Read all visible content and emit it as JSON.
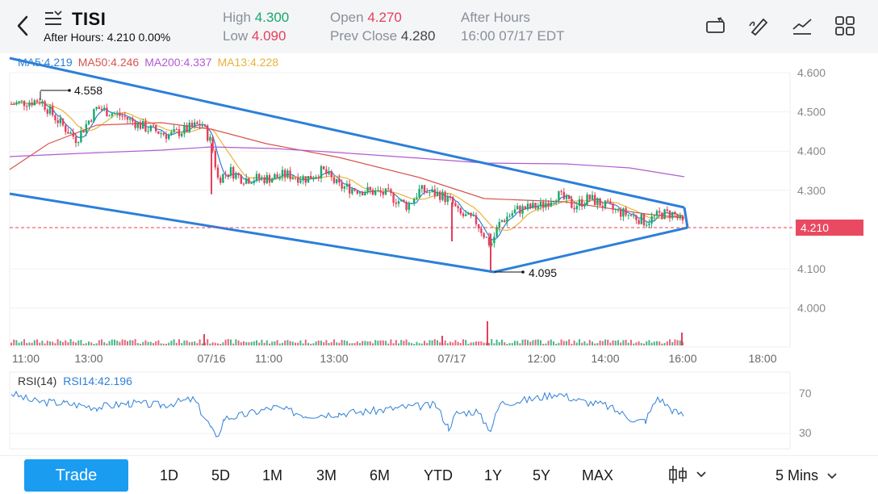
{
  "header": {
    "ticker": "TISI",
    "after_hours_line": "After Hours: 4.210 0.00%",
    "high_label": "High",
    "high_value": "4.300",
    "low_label": "Low",
    "low_value": "4.090",
    "open_label": "Open",
    "open_value": "4.270",
    "prev_close_label": "Prev Close",
    "prev_close_value": "4.280",
    "session_label": "After Hours",
    "session_time": "16:00 07/17 EDT"
  },
  "toolbar_icons": [
    "rotate-screen-icon",
    "drawing-tool-icon",
    "indicator-icon",
    "layout-grid-icon"
  ],
  "legend": {
    "ma5": "MA5:4.219",
    "ma50": "MA50:4.246",
    "ma200": "MA200:4.337",
    "ma13": "MA13:4.228"
  },
  "price_axis": [
    "4.600",
    "4.500",
    "4.400",
    "4.300",
    "4.100",
    "4.000"
  ],
  "current_price_tag": "4.210",
  "annotations": {
    "high_marker": "4.558",
    "low_marker": "4.095"
  },
  "time_axis": [
    "11:00",
    "13:00",
    "07/16",
    "11:00",
    "13:00",
    "07/17",
    "12:00",
    "14:00",
    "16:00",
    "18:00"
  ],
  "rsi": {
    "title": "RSI(14)",
    "value": "RSI14:42.196",
    "levels": [
      "70",
      "30"
    ]
  },
  "bottom_bar": {
    "trade_label": "Trade",
    "ranges": [
      "1D",
      "5D",
      "1M",
      "3M",
      "6M",
      "YTD",
      "1Y",
      "5Y",
      "MAX"
    ],
    "interval_label": "5 Mins"
  },
  "colors": {
    "up": "#19a86b",
    "down": "#e4405b",
    "ma5": "#2f7fd6",
    "ma50": "#d9534f",
    "ma200": "#b15bd0",
    "ma13": "#e8b23a",
    "trendline": "#2c7fd9"
  }
}
